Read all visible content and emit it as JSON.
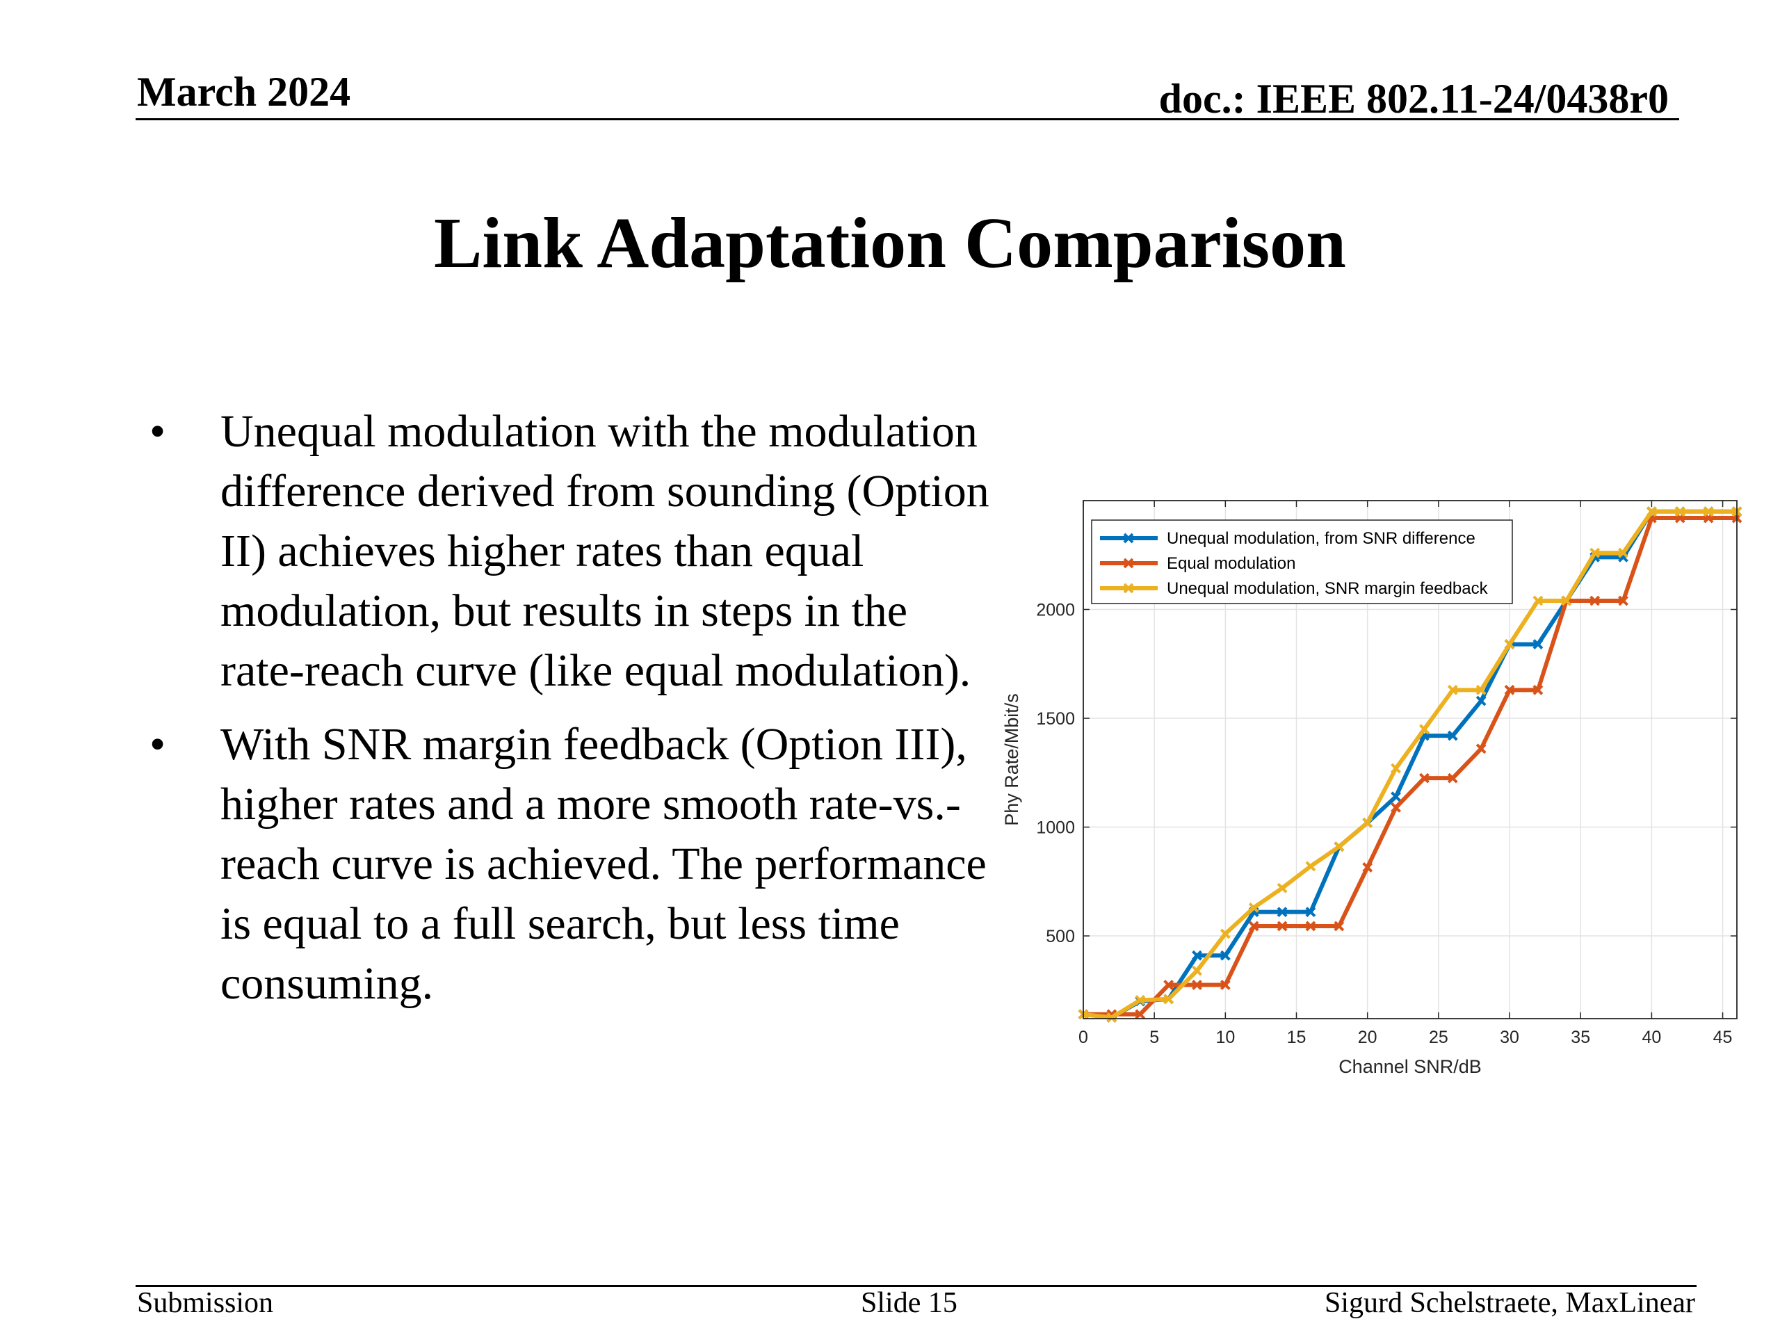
{
  "header": {
    "date": "March 2024",
    "doc": "doc.: IEEE 802.11-24/0438r0"
  },
  "title": "Link Adaptation Comparison",
  "bullets": [
    {
      "marker": "•",
      "text": "Unequal modulation with the modulation difference derived from sounding (Option II) achieves higher rates than equal modulation, but results in steps in the rate-reach curve (like equal modulation)."
    },
    {
      "marker": "•",
      "text": "With SNR margin feedback (Option III), higher rates and a more smooth rate-vs.-reach curve is achieved. The performance is equal to a full search, but less time consuming."
    }
  ],
  "footer": {
    "left": "Submission",
    "center": "Slide 15",
    "right": "Sigurd Schelstraete, MaxLinear"
  },
  "chart_data": {
    "type": "line",
    "xlabel": "Channel SNR/dB",
    "ylabel": "Phy Rate/Mbit/s",
    "xlim": [
      0,
      46
    ],
    "ylim": [
      120,
      2500
    ],
    "xticks": [
      0,
      5,
      10,
      15,
      20,
      25,
      30,
      35,
      40,
      45
    ],
    "yticks": [
      500,
      1000,
      1500,
      2000
    ],
    "grid": true,
    "legend_position": "top-left",
    "x": [
      0,
      2,
      4,
      6,
      8,
      10,
      12,
      14,
      16,
      18,
      20,
      22,
      24,
      26,
      28,
      30,
      32,
      34,
      36,
      38,
      40,
      42,
      44,
      46
    ],
    "series": [
      {
        "name": "Unequal modulation, from SNR difference",
        "color": "#0072BD",
        "values": [
          140,
          125,
          200,
          210,
          410,
          410,
          610,
          610,
          610,
          910,
          1020,
          1140,
          1420,
          1420,
          1580,
          1840,
          1840,
          2040,
          2240,
          2240,
          2450,
          2450,
          2450,
          2450
        ]
      },
      {
        "name": "Equal modulation",
        "color": "#D95319",
        "values": [
          140,
          140,
          140,
          275,
          275,
          275,
          545,
          545,
          545,
          545,
          815,
          1090,
          1225,
          1225,
          1360,
          1630,
          1630,
          2040,
          2040,
          2040,
          2420,
          2420,
          2420,
          2420
        ]
      },
      {
        "name": "Unequal modulation, SNR margin feedback",
        "color": "#EDB120",
        "values": [
          140,
          125,
          205,
          210,
          340,
          510,
          630,
          720,
          820,
          910,
          1020,
          1270,
          1450,
          1630,
          1630,
          1840,
          2040,
          2040,
          2260,
          2260,
          2450,
          2450,
          2450,
          2450
        ]
      }
    ]
  }
}
